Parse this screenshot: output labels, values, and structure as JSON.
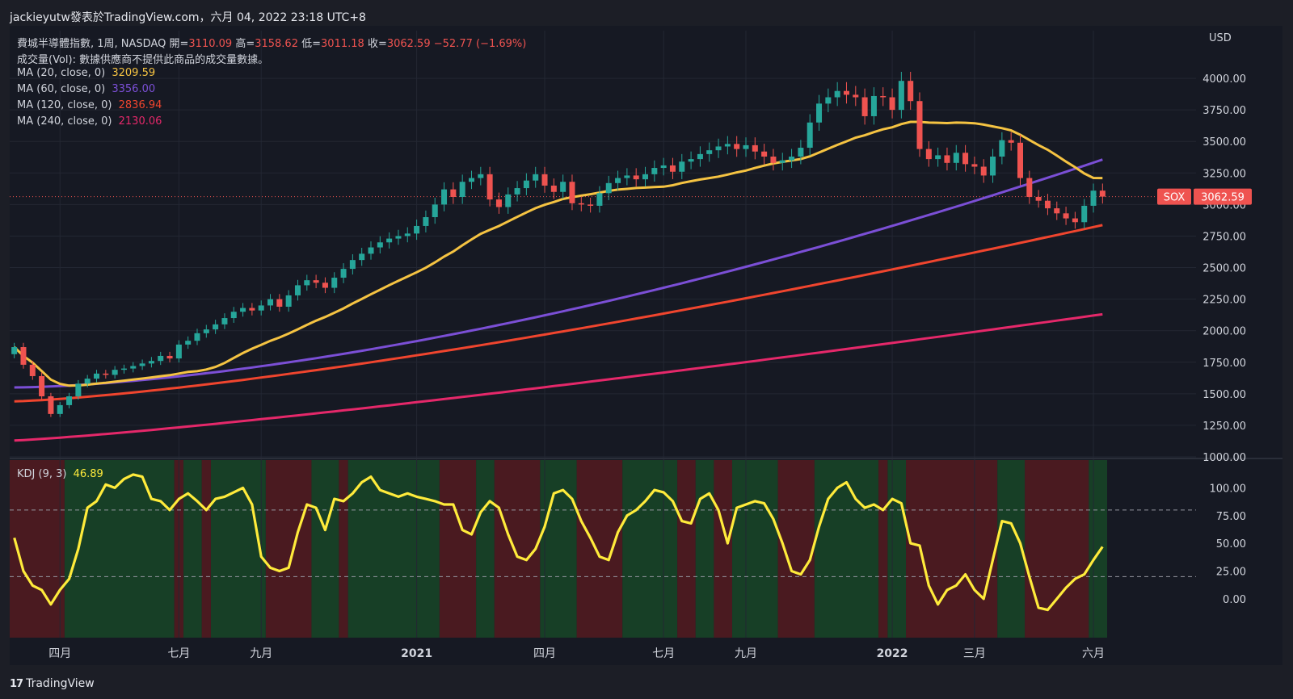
{
  "header": {
    "publisher": "jackieyutw發表於TradingView.com，六月 04, 2022 23:18 UTC+8"
  },
  "legend": {
    "symbol_line": "費城半導體指數, 1周, NASDAQ",
    "open_label": "開=",
    "open": "3110.09",
    "high_label": "高=",
    "high": "3158.62",
    "low_label": "低=",
    "low": "3011.18",
    "close_label": "收=",
    "close": "3062.59",
    "change": "−52.77 (−1.69%)",
    "volume_line": "成交量(Vol): 數據供應商不提供此商品的成交量數據。",
    "ma": [
      {
        "label": "MA (20, close, 0)",
        "value": "3209.59",
        "color": "#f5c342"
      },
      {
        "label": "MA (60, close, 0)",
        "value": "3356.00",
        "color": "#7b4fd6"
      },
      {
        "label": "MA (120, close, 0)",
        "value": "2836.94",
        "color": "#f0452e"
      },
      {
        "label": "MA (240, close, 0)",
        "value": "2130.06",
        "color": "#e5286a"
      }
    ],
    "kdj_label": "KDJ (9, 3)",
    "kdj_value": "46.89"
  },
  "price_axis": {
    "currency": "USD",
    "symbol_tag": "SOX",
    "last_price_tag": "3062.59"
  },
  "footer": {
    "brand": "TradingView"
  },
  "colors": {
    "up": "#26a69a",
    "down": "#ef5350",
    "kdj_line": "#ffeb3b",
    "bg_green": "#173f26",
    "bg_red": "#4a1a20"
  },
  "chart_data": [
    {
      "type": "candlestick",
      "title": "費城半導體指數, 1周, NASDAQ",
      "ylabel": "USD",
      "ylim": [
        1000,
        4250
      ],
      "y_ticks": [
        1000,
        1250,
        1500,
        1750,
        2000,
        2250,
        2500,
        2750,
        3000,
        3250,
        3500,
        3750,
        4000
      ],
      "y_tick_labels": [
        "1000.00",
        "1250.00",
        "1500.00",
        "1750.00",
        "2000.00",
        "2250.00",
        "2500.00",
        "2750.00",
        "3000.00",
        "3250.00",
        "3500.00",
        "3750.00",
        "4000.00"
      ],
      "x_labels": [
        "四月",
        "七月",
        "九月",
        "2021",
        "四月",
        "七月",
        "九月",
        "2022",
        "三月",
        "六月"
      ],
      "x_label_index": [
        5,
        18,
        27,
        44,
        58,
        71,
        80,
        96,
        105,
        118
      ],
      "bars": 120,
      "closes": [
        1870,
        1730,
        1640,
        1480,
        1340,
        1410,
        1480,
        1580,
        1620,
        1660,
        1650,
        1690,
        1700,
        1720,
        1740,
        1760,
        1800,
        1780,
        1890,
        1920,
        1980,
        2010,
        2050,
        2100,
        2150,
        2180,
        2160,
        2200,
        2250,
        2190,
        2280,
        2360,
        2400,
        2380,
        2340,
        2420,
        2490,
        2560,
        2610,
        2660,
        2700,
        2730,
        2750,
        2770,
        2830,
        2900,
        3000,
        3120,
        3060,
        3180,
        3210,
        3240,
        3040,
        2980,
        3080,
        3130,
        3190,
        3240,
        3150,
        3100,
        3180,
        3010,
        3000,
        2990,
        3090,
        3170,
        3210,
        3230,
        3200,
        3240,
        3290,
        3310,
        3260,
        3340,
        3360,
        3400,
        3430,
        3460,
        3480,
        3440,
        3470,
        3420,
        3380,
        3330,
        3350,
        3380,
        3450,
        3650,
        3800,
        3850,
        3900,
        3870,
        3850,
        3700,
        3860,
        3850,
        3750,
        3980,
        3820,
        3440,
        3360,
        3390,
        3330,
        3410,
        3320,
        3300,
        3230,
        3380,
        3510,
        3490,
        3210,
        3060,
        3030,
        2970,
        2930,
        2890,
        2860,
        2990,
        3110,
        3062.59
      ],
      "series": [
        {
          "name": "MA (20, close, 0)",
          "last": 3209.59
        },
        {
          "name": "MA (60, close, 0)",
          "last": 3356.0
        },
        {
          "name": "MA (120, close, 0)",
          "last": 2836.94
        },
        {
          "name": "MA (240, close, 0)",
          "last": 2130.06
        }
      ],
      "last_price": 3062.59
    },
    {
      "type": "line",
      "title": "KDJ (9, 3)",
      "ylim": [
        -35,
        125
      ],
      "y_ticks": [
        0,
        25,
        50,
        75,
        100
      ],
      "y_tick_labels": [
        "0.00",
        "25.00",
        "50.00",
        "75.00",
        "100.00"
      ],
      "reference_lines": [
        80,
        20
      ],
      "values": [
        55,
        25,
        12,
        8,
        -5,
        8,
        18,
        45,
        82,
        88,
        103,
        100,
        108,
        112,
        110,
        90,
        88,
        80,
        90,
        95,
        88,
        80,
        90,
        92,
        96,
        100,
        85,
        38,
        28,
        25,
        28,
        60,
        85,
        82,
        62,
        90,
        88,
        95,
        105,
        110,
        98,
        95,
        92,
        95,
        92,
        90,
        88,
        85,
        85,
        62,
        58,
        78,
        88,
        82,
        58,
        38,
        35,
        45,
        65,
        95,
        98,
        90,
        70,
        55,
        38,
        35,
        60,
        75,
        80,
        88,
        98,
        96,
        88,
        70,
        68,
        90,
        95,
        80,
        50,
        82,
        85,
        88,
        86,
        72,
        50,
        25,
        22,
        35,
        65,
        90,
        100,
        105,
        90,
        82,
        85,
        80,
        90,
        86,
        50,
        48,
        12,
        -5,
        8,
        12,
        22,
        8,
        0,
        35,
        70,
        68,
        50,
        20,
        -8,
        -10,
        0,
        10,
        18,
        22,
        35,
        46.89
      ],
      "zones": [
        {
          "from": 0,
          "to": 6,
          "state": "red"
        },
        {
          "from": 6,
          "to": 18,
          "state": "green"
        },
        {
          "from": 18,
          "to": 19,
          "state": "red"
        },
        {
          "from": 19,
          "to": 21,
          "state": "green"
        },
        {
          "from": 21,
          "to": 22,
          "state": "red"
        },
        {
          "from": 22,
          "to": 28,
          "state": "green"
        },
        {
          "from": 28,
          "to": 33,
          "state": "red"
        },
        {
          "from": 33,
          "to": 36,
          "state": "green"
        },
        {
          "from": 36,
          "to": 37,
          "state": "red"
        },
        {
          "from": 37,
          "to": 47,
          "state": "green"
        },
        {
          "from": 47,
          "to": 51,
          "state": "red"
        },
        {
          "from": 51,
          "to": 53,
          "state": "green"
        },
        {
          "from": 53,
          "to": 58,
          "state": "red"
        },
        {
          "from": 58,
          "to": 62,
          "state": "green"
        },
        {
          "from": 62,
          "to": 67,
          "state": "red"
        },
        {
          "from": 67,
          "to": 73,
          "state": "green"
        },
        {
          "from": 73,
          "to": 75,
          "state": "red"
        },
        {
          "from": 75,
          "to": 77,
          "state": "green"
        },
        {
          "from": 77,
          "to": 79,
          "state": "red"
        },
        {
          "from": 79,
          "to": 84,
          "state": "green"
        },
        {
          "from": 84,
          "to": 88,
          "state": "red"
        },
        {
          "from": 88,
          "to": 95,
          "state": "green"
        },
        {
          "from": 95,
          "to": 96,
          "state": "red"
        },
        {
          "from": 96,
          "to": 98,
          "state": "green"
        },
        {
          "from": 98,
          "to": 108,
          "state": "red"
        },
        {
          "from": 108,
          "to": 111,
          "state": "green"
        },
        {
          "from": 111,
          "to": 118,
          "state": "red"
        },
        {
          "from": 118,
          "to": 120,
          "state": "green"
        }
      ]
    }
  ]
}
